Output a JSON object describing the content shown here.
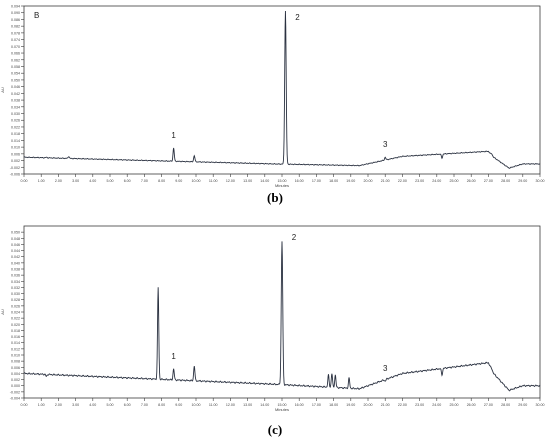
{
  "chart_data": [
    {
      "type": "line",
      "panel_letter": "B",
      "caption": "(b)",
      "xlabel": "Minutes",
      "ylabel": "AU",
      "xlim": [
        0,
        30
      ],
      "ylim": [
        -0.006,
        0.094
      ],
      "x_ticks": [
        "0.00",
        "1.00",
        "2.00",
        "3.00",
        "4.00",
        "5.00",
        "6.00",
        "7.00",
        "8.00",
        "9.00",
        "10.00",
        "11.00",
        "12.00",
        "13.00",
        "14.00",
        "15.00",
        "16.00",
        "17.00",
        "18.00",
        "19.00",
        "20.00",
        "21.00",
        "22.00",
        "23.00",
        "24.00",
        "25.00",
        "26.00",
        "27.00",
        "28.00",
        "29.00",
        "30.00"
      ],
      "y_ticks": [
        "0.094",
        "0.090",
        "0.086",
        "0.082",
        "0.078",
        "0.074",
        "0.070",
        "0.066",
        "0.062",
        "0.058",
        "0.054",
        "0.050",
        "0.046",
        "0.042",
        "0.038",
        "0.034",
        "0.030",
        "0.026",
        "0.022",
        "0.018",
        "0.014",
        "0.010",
        "0.006",
        "0.002",
        "-0.002",
        "-0.006"
      ],
      "baseline": [
        [
          0,
          0.004
        ],
        [
          14.5,
          0.0
        ],
        [
          19.5,
          -0.001
        ],
        [
          22,
          0.0045
        ],
        [
          27,
          0.0075
        ],
        [
          27.3,
          0.004
        ],
        [
          28.2,
          -0.0025
        ],
        [
          29,
          0.0
        ],
        [
          30,
          0.0
        ]
      ],
      "peaks": [
        [
          1.3,
          0.004
        ],
        [
          2.6,
          0.0045
        ],
        [
          8.7,
          0.0095
        ],
        [
          9.9,
          0.005
        ],
        [
          15.2,
          0.091
        ],
        [
          21.0,
          0.004
        ],
        [
          24.3,
          0.0035
        ],
        [
          27.2,
          0.006
        ]
      ],
      "peak_labels": [
        {
          "text": "1",
          "x": 8.7
        },
        {
          "text": "2",
          "x": 15.2
        },
        {
          "text": "3",
          "x": 21.0
        }
      ],
      "color": "#2a3140"
    },
    {
      "type": "line",
      "panel_letter": "",
      "caption": "(c)",
      "xlabel": "Minutes",
      "ylabel": "AU",
      "xlim": [
        0,
        30
      ],
      "ylim": [
        -0.004,
        0.052
      ],
      "x_ticks": [
        "0.00",
        "1.00",
        "2.00",
        "3.00",
        "4.00",
        "5.00",
        "6.00",
        "7.00",
        "8.00",
        "9.00",
        "10.00",
        "11.00",
        "12.00",
        "13.00",
        "14.00",
        "15.00",
        "16.00",
        "17.00",
        "18.00",
        "19.00",
        "20.00",
        "21.00",
        "22.00",
        "23.00",
        "24.00",
        "25.00",
        "26.00",
        "27.00",
        "28.00",
        "29.00",
        "30.00"
      ],
      "y_ticks": [
        "0.050",
        "0.048",
        "0.046",
        "0.044",
        "0.042",
        "0.040",
        "0.038",
        "0.036",
        "0.034",
        "0.032",
        "0.030",
        "0.028",
        "0.026",
        "0.024",
        "0.022",
        "0.020",
        "0.018",
        "0.016",
        "0.014",
        "0.012",
        "0.010",
        "0.008",
        "0.006",
        "0.004",
        "0.002",
        "0.000",
        "-0.002",
        "-0.004"
      ],
      "baseline": [
        [
          0,
          0.004
        ],
        [
          14.5,
          0.0005
        ],
        [
          19.5,
          -0.001
        ],
        [
          22,
          0.004
        ],
        [
          27,
          0.0075
        ],
        [
          27.3,
          0.004
        ],
        [
          28.2,
          -0.0015
        ],
        [
          29,
          0.0
        ],
        [
          30,
          0.0
        ]
      ],
      "peaks": [
        [
          1.3,
          0.003
        ],
        [
          7.8,
          0.032
        ],
        [
          8.7,
          0.0055
        ],
        [
          9.9,
          0.0065
        ],
        [
          15.0,
          0.047
        ],
        [
          17.7,
          0.0035
        ],
        [
          17.9,
          0.004
        ],
        [
          18.1,
          0.0035
        ],
        [
          18.9,
          0.0025
        ],
        [
          21.0,
          0.0015
        ],
        [
          24.3,
          0.0035
        ],
        [
          27.2,
          0.0055
        ]
      ],
      "peak_labels": [
        {
          "text": "1",
          "x": 8.7
        },
        {
          "text": "2",
          "x": 15.0
        },
        {
          "text": "3",
          "x": 21.0
        }
      ],
      "color": "#2a3140"
    }
  ]
}
